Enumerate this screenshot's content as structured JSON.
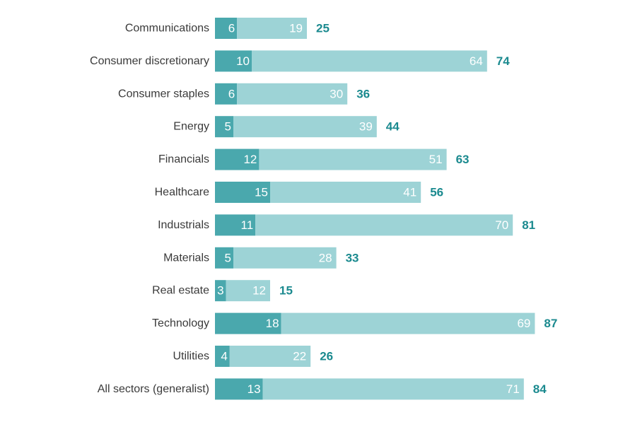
{
  "chart_data": {
    "type": "bar",
    "orientation": "horizontal",
    "stacked": true,
    "categories": [
      "Communications",
      "Consumer discretionary",
      "Consumer staples",
      "Energy",
      "Financials",
      "Healthcare",
      "Industrials",
      "Materials",
      "Real estate",
      "Technology",
      "Utilities",
      "All sectors (generalist)"
    ],
    "series": [
      {
        "values": [
          6,
          10,
          6,
          5,
          12,
          15,
          11,
          5,
          3,
          18,
          4,
          13
        ],
        "color": "#4aa8ad"
      },
      {
        "values": [
          19,
          64,
          30,
          39,
          51,
          41,
          70,
          28,
          12,
          69,
          22,
          71
        ],
        "color": "#9dd3d6"
      }
    ],
    "totals": [
      25,
      74,
      36,
      44,
      63,
      56,
      81,
      33,
      15,
      87,
      26,
      84
    ],
    "total_label_color": "#1b8a8f",
    "grid": false,
    "legend": "none"
  }
}
